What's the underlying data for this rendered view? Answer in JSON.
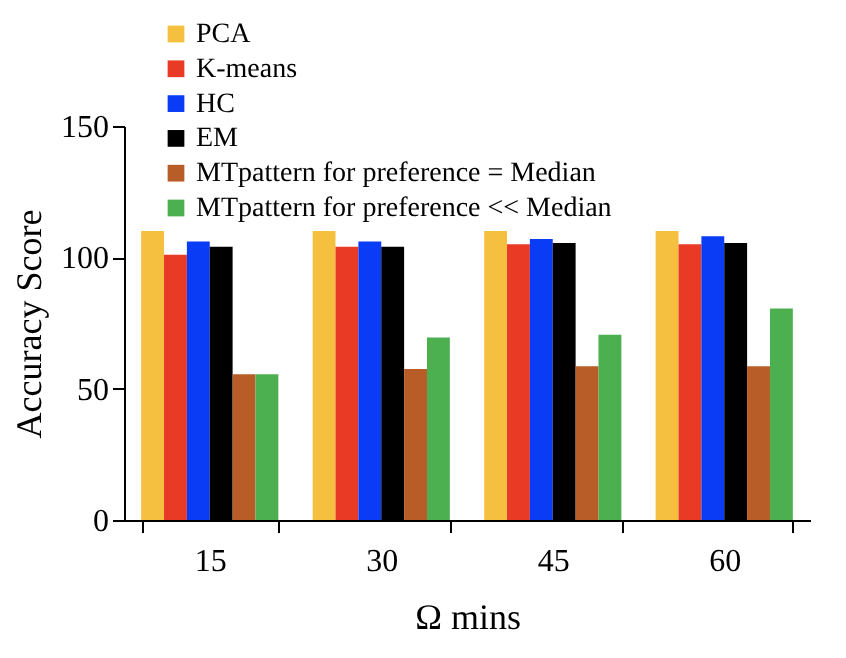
{
  "chart_data": {
    "type": "bar",
    "xlabel": "Ω mins",
    "ylabel": "Accuracy Score",
    "categories": [
      "15",
      "30",
      "45",
      "60"
    ],
    "series": [
      {
        "name": "PCA",
        "color": "#f5c040",
        "values": [
          110,
          110,
          110,
          110
        ]
      },
      {
        "name": "K-means",
        "color": "#e83a25",
        "values": [
          101,
          104,
          105,
          105
        ]
      },
      {
        "name": "HC",
        "color": "#0a3cf5",
        "values": [
          106,
          106,
          107,
          108
        ]
      },
      {
        "name": "EM",
        "color": "#000000",
        "values": [
          104,
          104,
          105.5,
          105.5
        ]
      },
      {
        "name": "MTpattern for preference = Median",
        "color": "#b85c28",
        "values": [
          55.5,
          57.5,
          58.5,
          58.5
        ]
      },
      {
        "name": "MTpattern for preference << Median",
        "color": "#4caf50",
        "values": [
          55.5,
          69.5,
          70.5,
          80.5
        ]
      }
    ],
    "ylim": [
      0,
      150
    ],
    "yticks": [
      0,
      50,
      100,
      150
    ],
    "grid": false,
    "legend": "top left"
  }
}
